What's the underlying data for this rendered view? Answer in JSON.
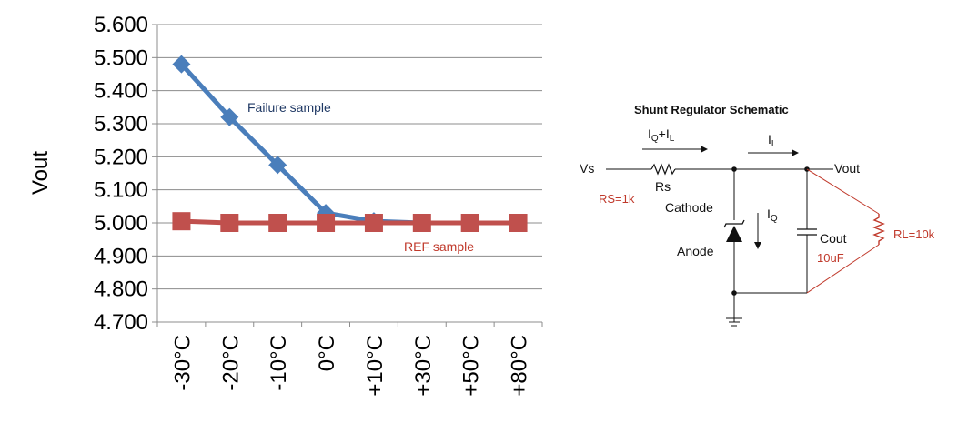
{
  "chart_data": {
    "type": "line",
    "ylabel": "Vout",
    "ylim": [
      4.7,
      5.6
    ],
    "yticks": [
      "5.600",
      "5.500",
      "5.400",
      "5.300",
      "5.200",
      "5.100",
      "5.000",
      "4.900",
      "4.800",
      "4.700"
    ],
    "categories": [
      "-30°C",
      "-20°C",
      "-10°C",
      "0°C",
      "+10°C",
      "+30°C",
      "+50°C",
      "+80°C"
    ],
    "grid": true,
    "series": [
      {
        "name": "Failure sample",
        "color": "#4a7ebb",
        "marker": "diamond",
        "values": [
          5.48,
          5.32,
          5.175,
          5.03,
          5.005,
          5.0,
          5.0,
          5.0
        ]
      },
      {
        "name": "REF sample",
        "color": "#c0504d",
        "marker": "square",
        "values": [
          5.005,
          5.0,
          5.0,
          5.0,
          5.0,
          5.0,
          5.0,
          5.0
        ]
      }
    ]
  },
  "schematic": {
    "title": "Shunt Regulator Schematic",
    "input_label": "Vs",
    "output_label": "Vout",
    "resistor_label": "Rs",
    "current_in": "IQ+IL",
    "current_load": "IL",
    "current_q": "IQ",
    "cathode_label": "Cathode",
    "anode_label": "Anode",
    "cap_label": "Cout",
    "rs_value": "RS=1k",
    "rl_value": "RL=10k",
    "cap_value": "10uF"
  }
}
